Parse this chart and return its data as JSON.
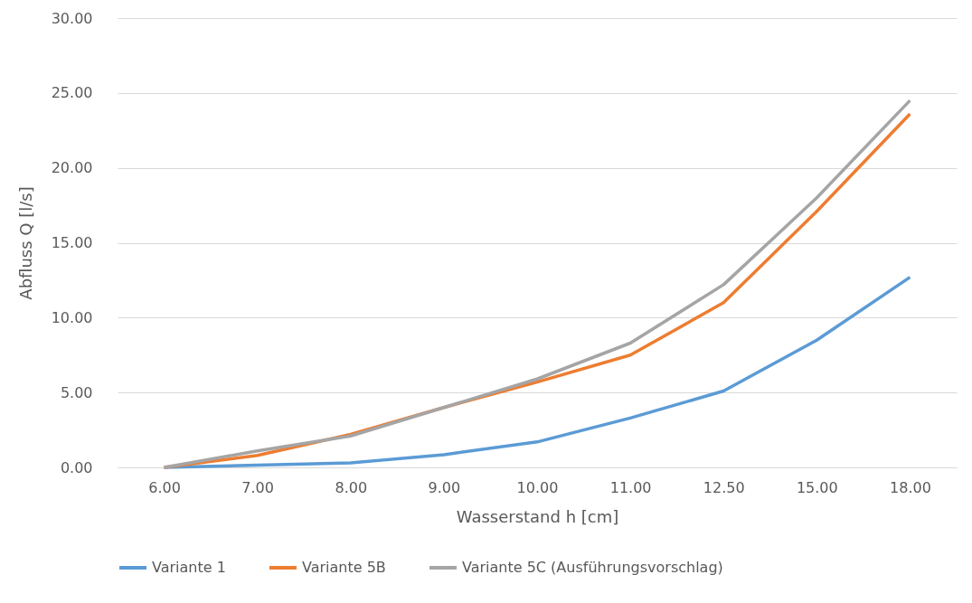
{
  "chart_data": {
    "type": "line",
    "xlabel": "Wasserstand h [cm]",
    "ylabel": "Abfluss Q [l/s]",
    "categories": [
      "6.00",
      "7.00",
      "8.00",
      "9.00",
      "10.00",
      "11.00",
      "12.50",
      "15.00",
      "18.00"
    ],
    "series": [
      {
        "name": "Variante 1",
        "color": "#5b9bd5",
        "values": [
          0,
          0.15,
          0.3,
          0.85,
          1.7,
          3.3,
          5.1,
          8.5,
          12.7
        ]
      },
      {
        "name": "Variante 5B",
        "color": "#ed7d31",
        "values": [
          0,
          0.8,
          2.2,
          4.0,
          5.7,
          7.5,
          11.0,
          17.1,
          23.6
        ]
      },
      {
        "name": "Variante 5C (Ausführungsvorschlag)",
        "color": "#a5a5a5",
        "values": [
          0,
          1.1,
          2.1,
          4.0,
          5.9,
          8.3,
          12.2,
          18.0,
          24.5
        ]
      }
    ],
    "ylim": [
      0,
      30
    ],
    "yticks": [
      {
        "value": 0,
        "label": "0.00"
      },
      {
        "value": 5,
        "label": "5.00"
      },
      {
        "value": 10,
        "label": "10.00"
      },
      {
        "value": 15,
        "label": "15.00"
      },
      {
        "value": 20,
        "label": "20.00"
      },
      {
        "value": 25,
        "label": "25.00"
      },
      {
        "value": 30,
        "label": "30.00"
      }
    ],
    "grid": "y",
    "legend": "bottom",
    "marker": "none",
    "line_style": "solid"
  }
}
